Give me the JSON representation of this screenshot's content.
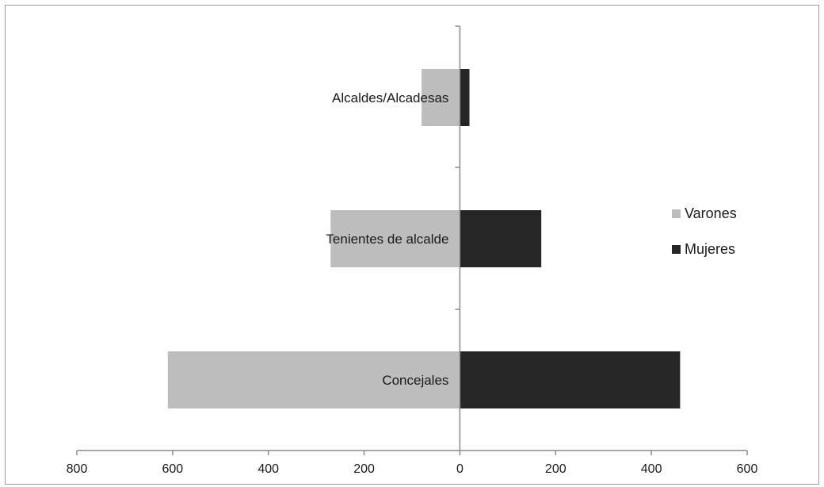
{
  "chart_data": {
    "type": "bar",
    "orientation": "horizontal",
    "categories": [
      "Alcaldes/Alcadesas",
      "Tenientes de alcalde",
      "Concejales"
    ],
    "series": [
      {
        "name": "Varones",
        "values": [
          -80,
          -270,
          -610
        ],
        "color": "#bdbdbd"
      },
      {
        "name": "Mujeres",
        "values": [
          20,
          170,
          460
        ],
        "color": "#262626"
      }
    ],
    "xlim": [
      -800,
      600
    ],
    "x_ticks": [
      -800,
      -600,
      -400,
      -200,
      0,
      200,
      400,
      600
    ],
    "x_tick_labels": [
      "800",
      "600",
      "400",
      "200",
      "0",
      "200",
      "400",
      "600"
    ],
    "legend_position": "right",
    "grid": false,
    "title": "",
    "xlabel": "",
    "ylabel": ""
  }
}
